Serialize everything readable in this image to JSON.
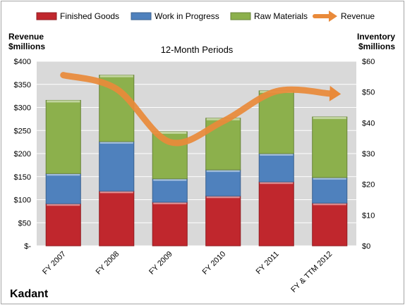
{
  "chart_data": {
    "type": "bar",
    "stacked": true,
    "title": "12-Month Periods",
    "company": "Kadant",
    "y_left_label": [
      "Revenue",
      "$millions"
    ],
    "y_right_label": [
      "Inventory",
      "$millions"
    ],
    "categories": [
      "FY 2007",
      "FY 2008",
      "FY 2009",
      "FY 2010",
      "FY 2011",
      "FY & TTM 2012"
    ],
    "series": [
      {
        "name": "Finished Goods",
        "axis": "right",
        "color": "#c0272d",
        "values": [
          13.7,
          17.8,
          14.2,
          16.2,
          20.8,
          13.9
        ]
      },
      {
        "name": "Work in Progress",
        "axis": "right",
        "color": "#4f81bd",
        "values": [
          9.8,
          16.1,
          7.6,
          8.5,
          9.2,
          8.3
        ]
      },
      {
        "name": "Raw Materials",
        "axis": "right",
        "color": "#8cb04c",
        "values": [
          23.8,
          21.6,
          15.3,
          16.8,
          20.4,
          19.7
        ]
      }
    ],
    "line_series": {
      "name": "Revenue",
      "axis": "left",
      "color": "#e98a3a",
      "values": [
        370,
        340,
        225,
        270,
        335,
        330
      ]
    },
    "y_left": {
      "min": 0,
      "max": 400,
      "step": 50,
      "tick_labels": [
        "$-",
        "$50",
        "$100",
        "$150",
        "$200",
        "$250",
        "$300",
        "$350",
        "$400"
      ]
    },
    "y_right": {
      "min": 0,
      "max": 60,
      "step": 10,
      "tick_labels": [
        "$0",
        "$10",
        "$20",
        "$30",
        "$40",
        "$50",
        "$60"
      ]
    },
    "legend_position": "top",
    "grid": true,
    "colors": {
      "plot_bg": "#d9d9d9",
      "grid": "#ffffff",
      "page_border": "#a6a6a6"
    }
  }
}
